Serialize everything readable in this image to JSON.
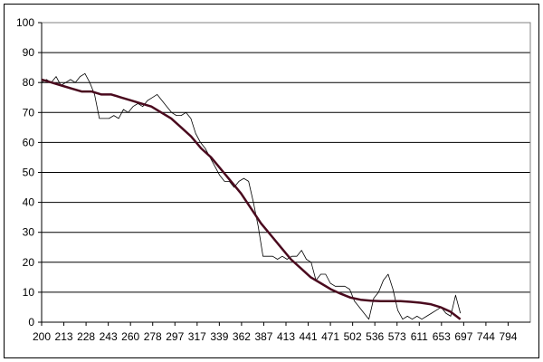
{
  "chart_data": {
    "type": "line",
    "title": "",
    "xlabel": "",
    "ylabel": "",
    "ylim": [
      0,
      100
    ],
    "y_ticks": [
      "0",
      "10",
      "20",
      "30",
      "40",
      "50",
      "60",
      "70",
      "80",
      "90",
      "100"
    ],
    "x_tick_labels": [
      "200",
      "213",
      "228",
      "243",
      "260",
      "278",
      "297",
      "317",
      "339",
      "362",
      "387",
      "413",
      "441",
      "471",
      "502",
      "536",
      "573",
      "611",
      "653",
      "697",
      "744",
      "794"
    ],
    "grid": "horizontal",
    "legend": "none",
    "colors": {
      "raw": "#000000",
      "trend": "#4a0a1e"
    },
    "series": [
      {
        "style": "thin-raw",
        "values": [
          80,
          81,
          80,
          82,
          79,
          80,
          81,
          80,
          82,
          83,
          80,
          76,
          68,
          68,
          68,
          69,
          68,
          71,
          70,
          72,
          73,
          72,
          74,
          75,
          76,
          74,
          72,
          70,
          69,
          69,
          70,
          68,
          63,
          60,
          58,
          55,
          52,
          49,
          47,
          47,
          45,
          47,
          48,
          47,
          40,
          32,
          22,
          22,
          22,
          21,
          22,
          21,
          22,
          22,
          24,
          21,
          20,
          14,
          16,
          16,
          13,
          12,
          12,
          12,
          11,
          7,
          5,
          3,
          1,
          8,
          10,
          14,
          16,
          11,
          4,
          1,
          2,
          1,
          2,
          1,
          2,
          3,
          4,
          5,
          3,
          2,
          9,
          3
        ]
      },
      {
        "style": "trend",
        "values": [
          81,
          80,
          79,
          78,
          77,
          77,
          76,
          76,
          75,
          74,
          73,
          72,
          70,
          68,
          65,
          62,
          58,
          55,
          51,
          47,
          43,
          38,
          33,
          29,
          25,
          21,
          18,
          15,
          13,
          11,
          9.5,
          8.2,
          7.5,
          7.2,
          7,
          7,
          7,
          6.8,
          6.5,
          6,
          5,
          3.5,
          1
        ]
      }
    ]
  }
}
